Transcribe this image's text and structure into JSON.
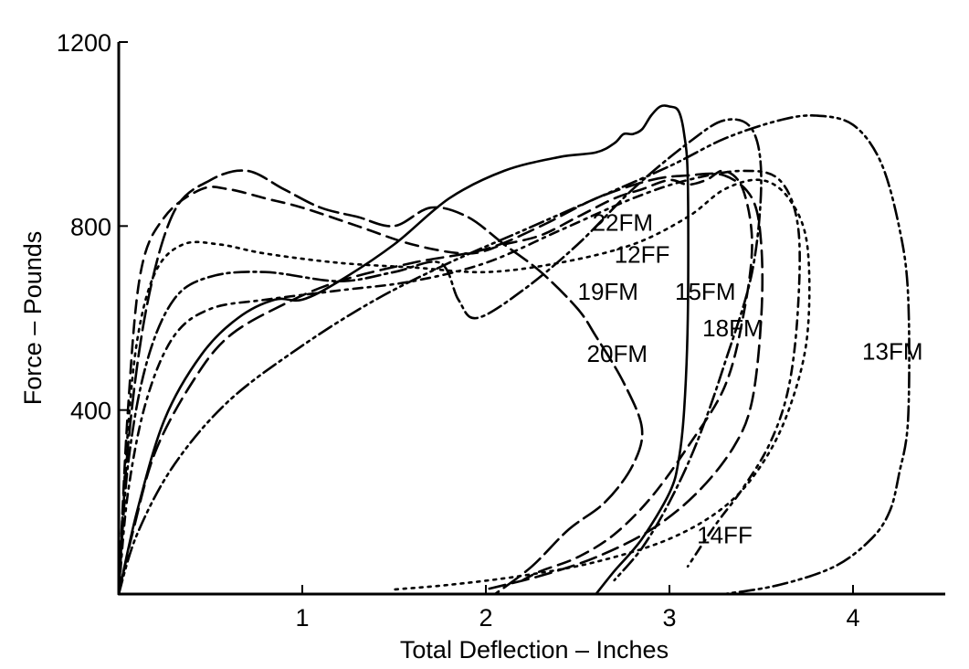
{
  "chart_data": {
    "type": "line",
    "title": "",
    "xlabel": "Total Deflection – Inches",
    "ylabel": "Force – Pounds",
    "xlim": [
      0,
      4.5
    ],
    "ylim": [
      0,
      1200
    ],
    "x_ticks": [
      1,
      2,
      3,
      4
    ],
    "x_tick_labels": [
      "1",
      "2",
      "3",
      "4"
    ],
    "y_ticks": [
      400,
      800,
      1200
    ],
    "y_tick_labels": [
      "400",
      "800",
      "1200"
    ],
    "grid": false,
    "legend": "none",
    "series": [
      {
        "name": "22FM",
        "dash": "14,8",
        "x": [
          0,
          0.05,
          0.12,
          0.25,
          0.45,
          0.6,
          0.8,
          1.0,
          1.3,
          1.6,
          1.9,
          2.1,
          2.3,
          2.5,
          2.7,
          2.85,
          3.0,
          3.1,
          3.2,
          3.3,
          3.4,
          3.45,
          3.4,
          3.3,
          3.1,
          2.9,
          2.7,
          2.5,
          2.3,
          2.2
        ],
        "y": [
          0,
          400,
          700,
          820,
          880,
          880,
          860,
          840,
          800,
          760,
          740,
          760,
          780,
          820,
          860,
          880,
          900,
          890,
          900,
          920,
          880,
          760,
          600,
          450,
          320,
          210,
          130,
          80,
          50,
          30
        ]
      },
      {
        "name": "12FF",
        "dash": "3,6",
        "x": [
          0,
          0.04,
          0.1,
          0.2,
          0.35,
          0.55,
          0.8,
          1.2,
          1.6,
          2.0,
          2.4,
          2.8,
          3.1,
          3.3,
          3.5,
          3.65,
          3.75,
          3.75,
          3.65,
          3.5,
          3.3,
          3.0,
          2.6,
          2.2,
          1.8,
          1.5
        ],
        "y": [
          0,
          300,
          550,
          700,
          760,
          760,
          740,
          720,
          710,
          700,
          720,
          760,
          820,
          880,
          900,
          860,
          760,
          560,
          400,
          280,
          190,
          120,
          70,
          40,
          20,
          10
        ]
      },
      {
        "name": "19FM",
        "dash": "16,5,3,5",
        "x": [
          0,
          0.05,
          0.15,
          0.3,
          0.5,
          0.8,
          1.2,
          1.5,
          1.75,
          1.85,
          1.95,
          2.2,
          2.5,
          2.8,
          3.1,
          3.3,
          3.45,
          3.5,
          3.45,
          3.3,
          3.15,
          3.0,
          2.85,
          2.7
        ],
        "y": [
          0,
          280,
          500,
          640,
          690,
          700,
          680,
          700,
          720,
          640,
          600,
          660,
          760,
          880,
          980,
          1030,
          1010,
          900,
          700,
          500,
          330,
          200,
          100,
          30
        ]
      },
      {
        "name": "15FM",
        "dash": "",
        "x": [
          0,
          0.1,
          0.25,
          0.45,
          0.65,
          0.85,
          1.0,
          1.2,
          1.5,
          1.8,
          2.1,
          2.4,
          2.6,
          2.7,
          2.75,
          2.8,
          2.85,
          2.9,
          2.95,
          3.0,
          3.05,
          3.08,
          3.1,
          3.1,
          3.08,
          3.05,
          3.0,
          2.85,
          2.7,
          2.6
        ],
        "y": [
          0,
          180,
          380,
          520,
          600,
          640,
          640,
          680,
          760,
          860,
          920,
          950,
          960,
          980,
          1000,
          1000,
          1010,
          1040,
          1060,
          1060,
          1050,
          1000,
          900,
          600,
          400,
          290,
          220,
          120,
          50,
          0
        ]
      },
      {
        "name": "18FM",
        "dash": "18,8",
        "x": [
          0,
          0.08,
          0.2,
          0.4,
          0.6,
          0.9,
          1.2,
          1.6,
          2.0,
          2.3,
          2.6,
          2.9,
          3.1,
          3.3,
          3.45,
          3.5,
          3.5,
          3.45,
          3.35,
          3.15,
          2.9,
          2.6,
          2.3,
          2.0
        ],
        "y": [
          0,
          140,
          310,
          460,
          560,
          630,
          680,
          720,
          750,
          800,
          860,
          900,
          910,
          910,
          860,
          760,
          600,
          420,
          320,
          220,
          140,
          80,
          40,
          10
        ]
      },
      {
        "name": "20FM",
        "dash": "22,7",
        "x": [
          0,
          0.05,
          0.15,
          0.3,
          0.5,
          0.7,
          0.9,
          1.1,
          1.3,
          1.5,
          1.7,
          1.9,
          2.1,
          2.3,
          2.5,
          2.6,
          2.75,
          2.85,
          2.8,
          2.65,
          2.45,
          2.25,
          2.05
        ],
        "y": [
          0,
          320,
          620,
          830,
          900,
          920,
          880,
          840,
          820,
          800,
          840,
          820,
          760,
          700,
          620,
          560,
          460,
          360,
          280,
          200,
          140,
          60,
          0
        ]
      },
      {
        "name": "13FM",
        "dash": "16,5,3,5,3,5",
        "x": [
          0,
          0.1,
          0.3,
          0.6,
          1.0,
          1.4,
          1.8,
          2.2,
          2.6,
          3.0,
          3.3,
          3.6,
          3.8,
          4.0,
          4.15,
          4.25,
          4.3,
          4.3,
          4.25,
          4.2,
          4.1,
          3.9,
          3.6,
          3.3
        ],
        "y": [
          0,
          130,
          280,
          420,
          540,
          640,
          720,
          790,
          860,
          930,
          990,
          1030,
          1040,
          1020,
          940,
          800,
          650,
          380,
          260,
          180,
          120,
          60,
          20,
          0
        ]
      },
      {
        "name": "14FF",
        "dash": "10,6,3,6",
        "x": [
          0,
          0.05,
          0.15,
          0.3,
          0.5,
          0.8,
          1.2,
          1.6,
          2.0,
          2.4,
          2.8,
          3.1,
          3.4,
          3.6,
          3.7,
          3.7,
          3.65,
          3.55,
          3.4,
          3.25,
          3.1
        ],
        "y": [
          0,
          220,
          420,
          560,
          620,
          640,
          660,
          680,
          720,
          790,
          860,
          900,
          920,
          900,
          800,
          620,
          450,
          330,
          230,
          150,
          60
        ]
      }
    ],
    "labels": [
      {
        "text": "22FM",
        "x": 2.58,
        "y": 790
      },
      {
        "text": "12FF",
        "x": 2.7,
        "y": 720
      },
      {
        "text": "19FM",
        "x": 2.5,
        "y": 640
      },
      {
        "text": "15FM",
        "x": 3.03,
        "y": 640
      },
      {
        "text": "18FM",
        "x": 3.18,
        "y": 560
      },
      {
        "text": "20FM",
        "x": 2.55,
        "y": 505
      },
      {
        "text": "13FM",
        "x": 4.05,
        "y": 510
      },
      {
        "text": "14FF",
        "x": 3.15,
        "y": 110
      }
    ]
  }
}
